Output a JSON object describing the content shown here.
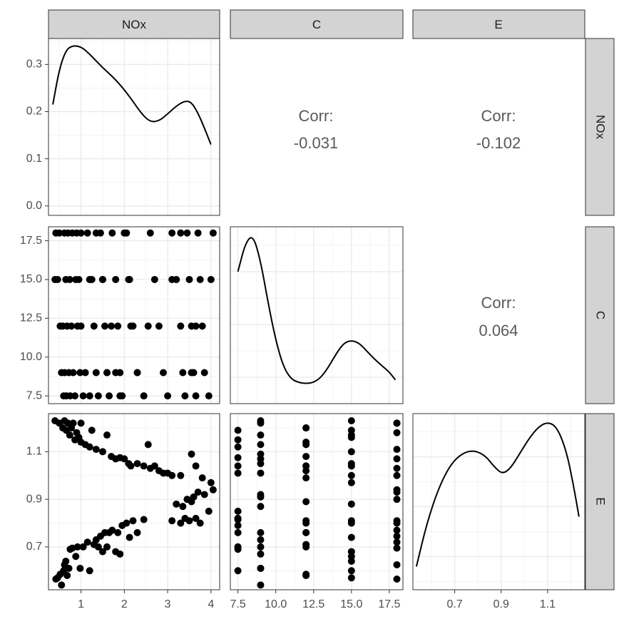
{
  "chart_data": {
    "type": "scatter",
    "title": "",
    "variables": [
      "NOx",
      "C",
      "E"
    ],
    "axes": {
      "NOx": {
        "lim": [
          0.25,
          4.2
        ],
        "ticks": [
          1,
          2,
          3,
          4
        ],
        "tick_labels": [
          "1",
          "2",
          "3",
          "4"
        ]
      },
      "C": {
        "lim": [
          7.0,
          18.4
        ],
        "ticks": [
          7.5,
          10.0,
          12.5,
          15.0,
          17.5
        ],
        "tick_labels": [
          "7.5",
          "10.0",
          "12.5",
          "15.0",
          "17.5"
        ]
      },
      "E": {
        "lim": [
          0.52,
          1.26
        ],
        "ticks": [
          0.7,
          0.9,
          1.1
        ],
        "tick_labels": [
          "0.7",
          "0.9",
          "1.1"
        ]
      },
      "density": {
        "lim": [
          -0.02,
          0.355
        ],
        "ticks": [
          0.0,
          0.1,
          0.2,
          0.3
        ],
        "tick_labels": [
          "0.0",
          "0.1",
          "0.2",
          "0.3"
        ]
      }
    },
    "grid": true,
    "correlations": [
      {
        "row": "NOx",
        "col": "C",
        "label": "Corr:",
        "value": "-0.031"
      },
      {
        "row": "NOx",
        "col": "E",
        "label": "Corr:",
        "value": "-0.102"
      },
      {
        "row": "C",
        "col": "E",
        "label": "Corr:",
        "value": "0.064"
      }
    ],
    "densities": {
      "NOx": [
        [
          0.35,
          0.215
        ],
        [
          0.5,
          0.29
        ],
        [
          0.65,
          0.33
        ],
        [
          0.8,
          0.34
        ],
        [
          1.0,
          0.338
        ],
        [
          1.2,
          0.322
        ],
        [
          1.5,
          0.293
        ],
        [
          1.8,
          0.268
        ],
        [
          2.1,
          0.235
        ],
        [
          2.4,
          0.195
        ],
        [
          2.6,
          0.178
        ],
        [
          2.8,
          0.18
        ],
        [
          3.0,
          0.195
        ],
        [
          3.2,
          0.212
        ],
        [
          3.4,
          0.223
        ],
        [
          3.55,
          0.22
        ],
        [
          3.7,
          0.197
        ],
        [
          3.85,
          0.165
        ],
        [
          4.0,
          0.13
        ]
      ],
      "C": [
        [
          7.5,
          0.85
        ],
        [
          8.0,
          0.905
        ],
        [
          8.5,
          0.92
        ],
        [
          9.0,
          0.87
        ],
        [
          9.5,
          0.79
        ],
        [
          10.0,
          0.72
        ],
        [
          10.5,
          0.67
        ],
        [
          11.0,
          0.647
        ],
        [
          11.5,
          0.64
        ],
        [
          12.0,
          0.638
        ],
        [
          12.5,
          0.64
        ],
        [
          13.0,
          0.65
        ],
        [
          13.5,
          0.67
        ],
        [
          14.0,
          0.695
        ],
        [
          14.5,
          0.715
        ],
        [
          15.0,
          0.72
        ],
        [
          15.5,
          0.715
        ],
        [
          16.0,
          0.7
        ],
        [
          16.5,
          0.685
        ],
        [
          17.0,
          0.672
        ],
        [
          17.5,
          0.66
        ],
        [
          17.9,
          0.645
        ]
      ],
      "E": [
        [
          0.535,
          0.62
        ],
        [
          0.58,
          0.75
        ],
        [
          0.63,
          0.855
        ],
        [
          0.68,
          0.925
        ],
        [
          0.73,
          0.96
        ],
        [
          0.78,
          0.97
        ],
        [
          0.83,
          0.955
        ],
        [
          0.87,
          0.92
        ],
        [
          0.905,
          0.898
        ],
        [
          0.94,
          0.915
        ],
        [
          0.98,
          0.96
        ],
        [
          1.02,
          1.005
        ],
        [
          1.06,
          1.04
        ],
        [
          1.1,
          1.055
        ],
        [
          1.14,
          1.04
        ],
        [
          1.18,
          0.97
        ],
        [
          1.21,
          0.87
        ],
        [
          1.235,
          0.77
        ]
      ]
    },
    "points": [
      {
        "NOx": 0.42,
        "C": 18.0,
        "E": 0.565
      },
      {
        "NOx": 0.46,
        "C": 15.0,
        "E": 0.57
      },
      {
        "NOx": 0.52,
        "C": 12.0,
        "E": 0.585
      },
      {
        "NOx": 0.55,
        "C": 9.0,
        "E": 0.54
      },
      {
        "NOx": 0.6,
        "C": 7.5,
        "E": 0.6
      },
      {
        "NOx": 0.62,
        "C": 18.0,
        "E": 0.625
      },
      {
        "NOx": 0.65,
        "C": 15.0,
        "E": 0.64
      },
      {
        "NOx": 0.68,
        "C": 12.0,
        "E": 0.58
      },
      {
        "NOx": 0.72,
        "C": 9.0,
        "E": 0.61
      },
      {
        "NOx": 0.75,
        "C": 7.5,
        "E": 0.69
      },
      {
        "NOx": 0.8,
        "C": 18.0,
        "E": 0.695
      },
      {
        "NOx": 0.88,
        "C": 15.0,
        "E": 0.66
      },
      {
        "NOx": 0.92,
        "C": 12.0,
        "E": 0.7
      },
      {
        "NOx": 0.98,
        "C": 9.0,
        "E": 0.61
      },
      {
        "NOx": 1.05,
        "C": 7.5,
        "E": 0.7
      },
      {
        "NOx": 1.15,
        "C": 18.0,
        "E": 0.72
      },
      {
        "NOx": 1.2,
        "C": 15.0,
        "E": 0.6
      },
      {
        "NOx": 1.3,
        "C": 12.0,
        "E": 0.71
      },
      {
        "NOx": 1.35,
        "C": 9.0,
        "E": 0.73
      },
      {
        "NOx": 1.4,
        "C": 7.5,
        "E": 0.7
      },
      {
        "NOx": 1.45,
        "C": 18.0,
        "E": 0.745
      },
      {
        "NOx": 1.5,
        "C": 15.0,
        "E": 0.68
      },
      {
        "NOx": 1.55,
        "C": 12.0,
        "E": 0.76
      },
      {
        "NOx": 1.6,
        "C": 9.0,
        "E": 0.7
      },
      {
        "NOx": 1.65,
        "C": 7.5,
        "E": 0.76
      },
      {
        "NOx": 1.72,
        "C": 18.0,
        "E": 0.77
      },
      {
        "NOx": 1.8,
        "C": 15.0,
        "E": 0.68
      },
      {
        "NOx": 1.85,
        "C": 12.0,
        "E": 0.76
      },
      {
        "NOx": 1.9,
        "C": 9.0,
        "E": 0.67
      },
      {
        "NOx": 1.95,
        "C": 7.5,
        "E": 0.79
      },
      {
        "NOx": 2.05,
        "C": 18.0,
        "E": 0.8
      },
      {
        "NOx": 2.12,
        "C": 15.0,
        "E": 0.74
      },
      {
        "NOx": 2.2,
        "C": 12.0,
        "E": 0.81
      },
      {
        "NOx": 2.3,
        "C": 9.0,
        "E": 0.76
      },
      {
        "NOx": 2.45,
        "C": 7.5,
        "E": 0.815
      },
      {
        "NOx": 3.1,
        "C": 18.0,
        "E": 0.81
      },
      {
        "NOx": 3.2,
        "C": 15.0,
        "E": 0.88
      },
      {
        "NOx": 3.3,
        "C": 12.0,
        "E": 0.8
      },
      {
        "NOx": 3.35,
        "C": 9.0,
        "E": 0.87
      },
      {
        "NOx": 3.4,
        "C": 7.5,
        "E": 0.82
      },
      {
        "NOx": 3.45,
        "C": 18.0,
        "E": 0.9
      },
      {
        "NOx": 3.5,
        "C": 15.0,
        "E": 0.81
      },
      {
        "NOx": 3.55,
        "C": 12.0,
        "E": 0.89
      },
      {
        "NOx": 3.6,
        "C": 9.0,
        "E": 0.91
      },
      {
        "NOx": 3.65,
        "C": 7.5,
        "E": 0.82
      },
      {
        "NOx": 3.7,
        "C": 18.0,
        "E": 0.93
      },
      {
        "NOx": 3.75,
        "C": 15.0,
        "E": 0.8
      },
      {
        "NOx": 3.8,
        "C": 12.0,
        "E": 0.99
      },
      {
        "NOx": 3.85,
        "C": 9.0,
        "E": 0.92
      },
      {
        "NOx": 3.95,
        "C": 7.5,
        "E": 0.85
      },
      {
        "NOx": 4.0,
        "C": 15.0,
        "E": 0.97
      },
      {
        "NOx": 4.05,
        "C": 18.0,
        "E": 0.94
      },
      {
        "NOx": 0.4,
        "C": 15.0,
        "E": 1.23
      },
      {
        "NOx": 0.5,
        "C": 18.0,
        "E": 1.22
      },
      {
        "NOx": 0.58,
        "C": 12.0,
        "E": 1.2
      },
      {
        "NOx": 0.62,
        "C": 9.0,
        "E": 1.23
      },
      {
        "NOx": 0.66,
        "C": 7.5,
        "E": 1.19
      },
      {
        "NOx": 0.7,
        "C": 18.0,
        "E": 1.22
      },
      {
        "NOx": 0.74,
        "C": 15.0,
        "E": 1.17
      },
      {
        "NOx": 0.78,
        "C": 12.0,
        "E": 1.2
      },
      {
        "NOx": 0.82,
        "C": 9.0,
        "E": 1.22
      },
      {
        "NOx": 0.86,
        "C": 7.5,
        "E": 1.15
      },
      {
        "NOx": 0.9,
        "C": 18.0,
        "E": 1.18
      },
      {
        "NOx": 0.95,
        "C": 15.0,
        "E": 1.16
      },
      {
        "NOx": 1.0,
        "C": 12.0,
        "E": 1.14
      },
      {
        "NOx": 1.1,
        "C": 9.0,
        "E": 1.13
      },
      {
        "NOx": 1.2,
        "C": 7.5,
        "E": 1.12
      },
      {
        "NOx": 1.35,
        "C": 18.0,
        "E": 1.11
      },
      {
        "NOx": 1.5,
        "C": 15.0,
        "E": 1.1
      },
      {
        "NOx": 1.7,
        "C": 12.0,
        "E": 1.08
      },
      {
        "NOx": 1.8,
        "C": 9.0,
        "E": 1.07
      },
      {
        "NOx": 1.9,
        "C": 7.5,
        "E": 1.075
      },
      {
        "NOx": 2.0,
        "C": 18.0,
        "E": 1.07
      },
      {
        "NOx": 2.1,
        "C": 15.0,
        "E": 1.05
      },
      {
        "NOx": 2.15,
        "C": 12.0,
        "E": 1.04
      },
      {
        "NOx": 2.3,
        "C": 9.0,
        "E": 1.05
      },
      {
        "NOx": 2.45,
        "C": 7.5,
        "E": 1.04
      },
      {
        "NOx": 2.6,
        "C": 18.0,
        "E": 1.03
      },
      {
        "NOx": 2.7,
        "C": 15.0,
        "E": 1.04
      },
      {
        "NOx": 2.8,
        "C": 12.0,
        "E": 1.02
      },
      {
        "NOx": 2.9,
        "C": 9.0,
        "E": 1.01
      },
      {
        "NOx": 3.0,
        "C": 7.5,
        "E": 1.01
      },
      {
        "NOx": 3.1,
        "C": 15.0,
        "E": 1.0
      },
      {
        "NOx": 3.3,
        "C": 18.0,
        "E": 1.0
      },
      {
        "NOx": 1.0,
        "C": 18.0,
        "E": 1.22
      },
      {
        "NOx": 1.25,
        "C": 15.0,
        "E": 1.19
      },
      {
        "NOx": 1.6,
        "C": 9.0,
        "E": 1.17
      },
      {
        "NOx": 2.55,
        "C": 12.0,
        "E": 1.13
      },
      {
        "NOx": 3.55,
        "C": 9.0,
        "E": 1.09
      },
      {
        "NOx": 3.65,
        "C": 12.0,
        "E": 1.04
      }
    ]
  }
}
